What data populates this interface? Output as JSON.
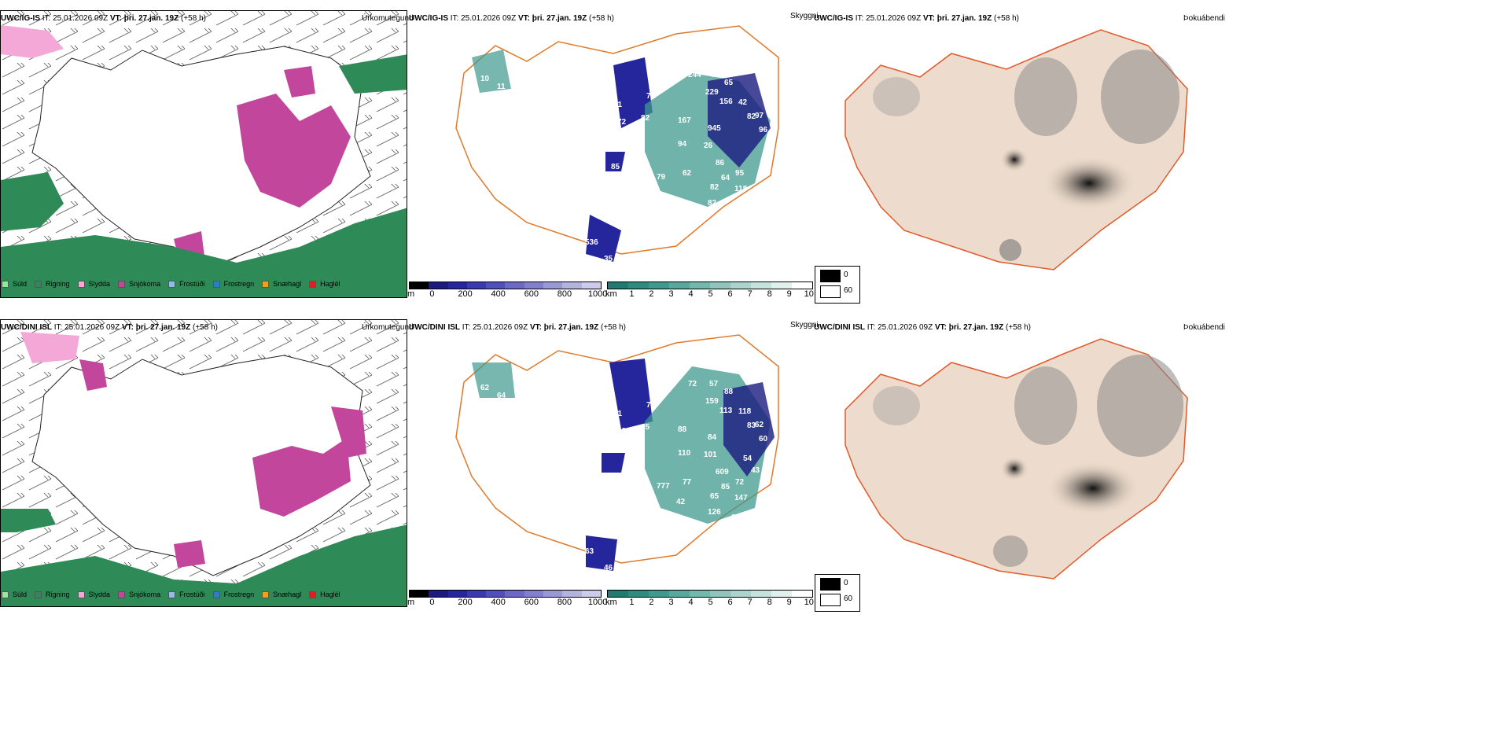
{
  "rows": [
    {
      "model": "UWC/IG-IS",
      "it_label": "IT:",
      "it_value": "25.01.2026 09Z",
      "vt_label": "VT:",
      "vt_value": "þri. 27.jan. 19Z",
      "lead": "(+58 h)",
      "titles": {
        "precip": "Úrkomutegund",
        "vis": "Skyggni",
        "fog": "Þokuábendi"
      },
      "cloud_labels": [
        "244",
        "435",
        "229",
        "65",
        "156",
        "42",
        "82",
        "71",
        "81",
        "72",
        "82",
        "167",
        "945",
        "94",
        "26",
        "02",
        "96",
        "97",
        "79",
        "62",
        "86",
        "64",
        "95",
        "118",
        "82",
        "85",
        "82",
        "62",
        "536",
        "35",
        "10",
        "11"
      ]
    },
    {
      "model": "UWC/DINI ISL",
      "it_label": "IT:",
      "it_value": "25.01.2026 09Z",
      "vt_label": "VT:",
      "vt_value": "þri. 27.jan. 19Z",
      "lead": "(+58 h)",
      "titles": {
        "precip": "Úrkomutegund",
        "vis": "Skyggni",
        "fog": "Þokuábendi"
      },
      "cloud_labels": [
        "72",
        "57",
        "159",
        "88",
        "113",
        "118",
        "83",
        "76",
        "61",
        "80",
        "95",
        "88",
        "84",
        "110",
        "101",
        "64",
        "60",
        "62",
        "777",
        "77",
        "609",
        "85",
        "72",
        "147",
        "65",
        "311",
        "126",
        "104",
        "63",
        "46",
        "62",
        "64",
        "54",
        "43",
        "28",
        "42"
      ]
    }
  ],
  "legend": [
    {
      "label": "Súld",
      "color": "#90ee90"
    },
    {
      "label": "Rigning",
      "color": "#2e8b57"
    },
    {
      "label": "Slydda",
      "color": "#f4a8d8"
    },
    {
      "label": "Snjókoma",
      "color": "#c2479c"
    },
    {
      "label": "Frostúði",
      "color": "#87bfee"
    },
    {
      "label": "Frostregn",
      "color": "#2f7dc8"
    },
    {
      "label": "Snæhagl",
      "color": "#f0a020"
    },
    {
      "label": "Haglél",
      "color": "#e02020"
    }
  ],
  "height_bar": {
    "unit": "m",
    "ticks": [
      "0",
      "200",
      "400",
      "600",
      "800",
      "1000"
    ],
    "colors": [
      "#000000",
      "#1a1a80",
      "#25259c",
      "#3a3aae",
      "#5050ba",
      "#6a6ac4",
      "#8080cc",
      "#9999d6",
      "#b3b3e0",
      "#ccccea"
    ]
  },
  "dist_bar": {
    "unit": "km",
    "ticks": [
      "1",
      "2",
      "3",
      "4",
      "5",
      "6",
      "7",
      "8",
      "9",
      "10"
    ],
    "colors": [
      "#1f7a72",
      "#2f8a80",
      "#3f998e",
      "#58a89d",
      "#73b7ad",
      "#8fc5bd",
      "#abd4cd",
      "#c6e2dd",
      "#e0f0ed",
      "#ffffff"
    ]
  },
  "fog_legend": {
    "top": "0",
    "bottom": "60"
  }
}
